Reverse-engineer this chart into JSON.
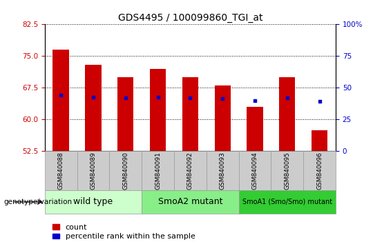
{
  "title": "GDS4495 / 100099860_TGI_at",
  "samples": [
    "GSM840088",
    "GSM840089",
    "GSM840090",
    "GSM840091",
    "GSM840092",
    "GSM840093",
    "GSM840094",
    "GSM840095",
    "GSM840096"
  ],
  "bar_values": [
    76.5,
    73.0,
    70.0,
    72.0,
    70.0,
    68.0,
    63.0,
    70.0,
    57.5
  ],
  "dot_values_left": [
    65.8,
    65.3,
    65.2,
    65.3,
    65.2,
    65.0,
    64.5,
    65.2,
    64.3
  ],
  "bar_color": "#cc0000",
  "dot_color": "#0000cc",
  "ylim_left": [
    52.5,
    82.5
  ],
  "yticks_left": [
    52.5,
    60.0,
    67.5,
    75.0,
    82.5
  ],
  "ylim_right": [
    0,
    100
  ],
  "yticks_right": [
    0,
    25,
    50,
    75,
    100
  ],
  "bar_width": 0.5,
  "groups": [
    {
      "label": "wild type",
      "samples": [
        0,
        1,
        2
      ],
      "color": "#ccffcc"
    },
    {
      "label": "SmoA2 mutant",
      "samples": [
        3,
        4,
        5
      ],
      "color": "#88ee88"
    },
    {
      "label": "SmoA1 (Smo/Smo) mutant",
      "samples": [
        6,
        7,
        8
      ],
      "color": "#33cc33"
    }
  ],
  "legend_count_label": "count",
  "legend_pct_label": "percentile rank within the sample",
  "genotype_label": "genotype/variation",
  "title_fontsize": 10,
  "tick_fontsize": 7.5,
  "legend_fontsize": 8,
  "sample_fontsize": 6.5,
  "group_fontsize_large": 9,
  "group_fontsize_small": 7,
  "sample_bg": "#cccccc",
  "grid_style": "dotted"
}
